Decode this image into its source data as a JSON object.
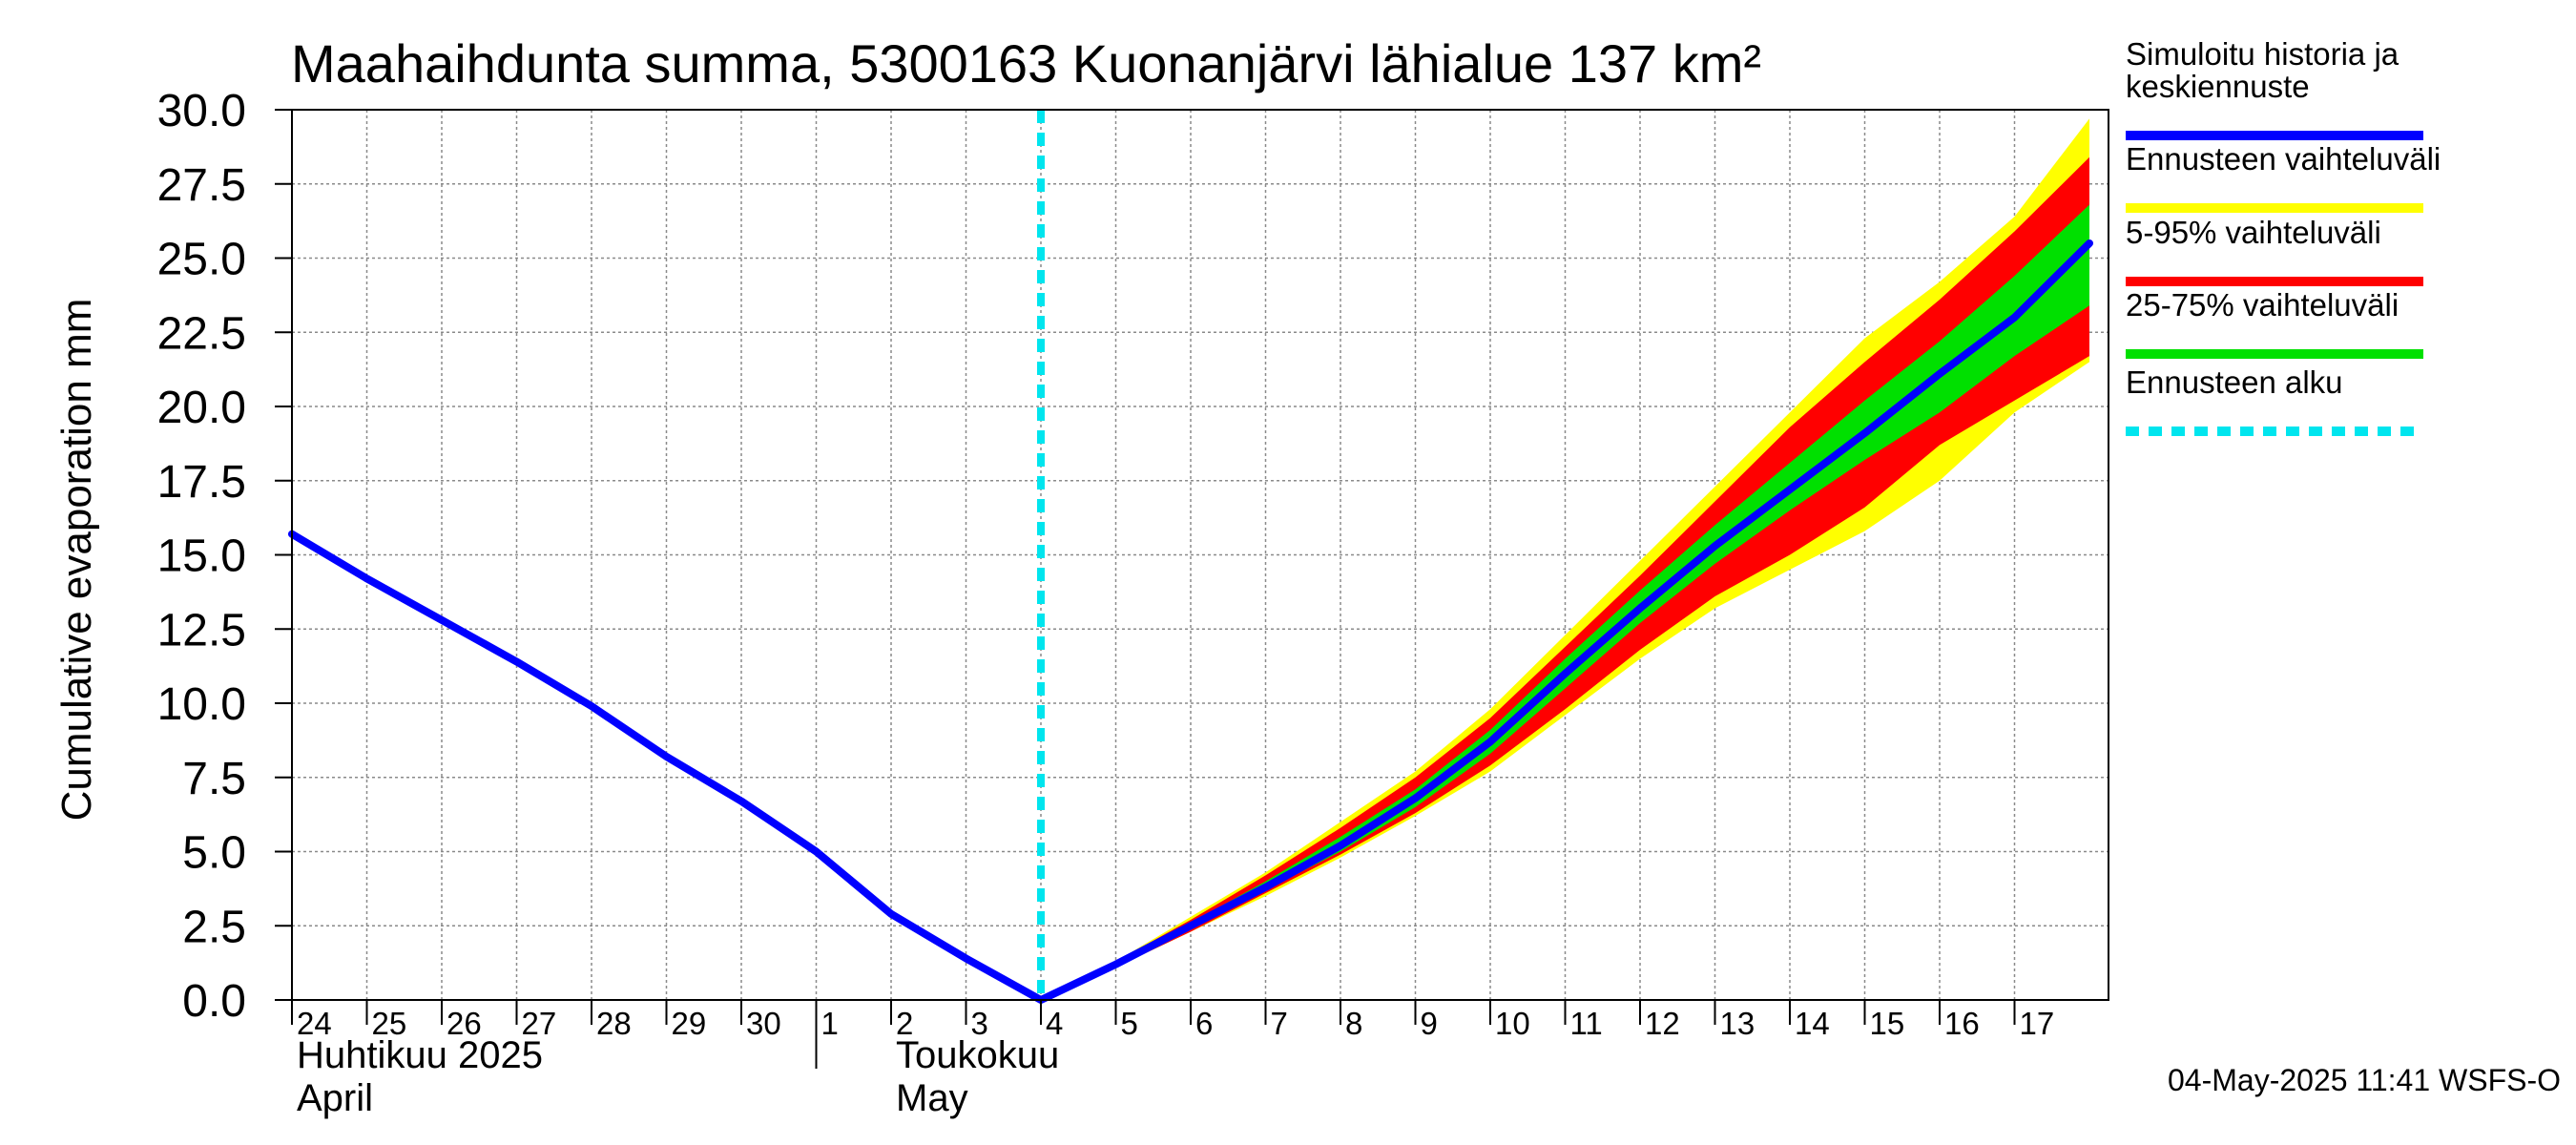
{
  "chart_data": {
    "type": "line",
    "title": "Maahaihdunta summa, 5300163 Kuonanjärvi lähialue 137 km²",
    "ylabel": "Cumulative evaporation   mm",
    "ylim": [
      0,
      30
    ],
    "yticks": [
      "0.0",
      "2.5",
      "5.0",
      "7.5",
      "10.0",
      "12.5",
      "15.0",
      "17.5",
      "20.0",
      "22.5",
      "25.0",
      "27.5",
      "30.0"
    ],
    "x_day_labels": [
      "24",
      "25",
      "26",
      "27",
      "28",
      "29",
      "30",
      "1",
      "2",
      "3",
      "4",
      "5",
      "6",
      "7",
      "8",
      "9",
      "10",
      "11",
      "12",
      "13",
      "14",
      "15",
      "16",
      "17"
    ],
    "month_labels": [
      {
        "line1": "Huhtikuu  2025",
        "line2": "April"
      },
      {
        "line1": "Toukokuu",
        "line2": "May"
      }
    ],
    "x_dates": [
      "2025-04-24",
      "2025-04-25",
      "2025-04-26",
      "2025-04-27",
      "2025-04-28",
      "2025-04-29",
      "2025-04-30",
      "2025-05-01",
      "2025-05-02",
      "2025-05-03",
      "2025-05-04",
      "2025-05-05",
      "2025-05-06",
      "2025-05-07",
      "2025-05-08",
      "2025-05-09",
      "2025-05-10",
      "2025-05-11",
      "2025-05-12",
      "2025-05-13",
      "2025-05-14",
      "2025-05-15",
      "2025-05-16",
      "2025-05-17",
      "2025-05-18"
    ],
    "x_range": [
      "2025-04-24",
      "2025-05-18"
    ],
    "forecast_start": "2025-05-04",
    "grid": true,
    "legend_position": "right",
    "series": [
      {
        "name": "Simuloitu historia ja keskiennuste",
        "color": "#0000ff",
        "values": [
          15.7,
          14.2,
          12.8,
          11.4,
          9.9,
          8.2,
          6.7,
          5.0,
          2.9,
          1.4,
          0.0,
          1.2,
          2.5,
          3.8,
          5.2,
          6.8,
          8.7,
          11.0,
          13.2,
          15.3,
          17.2,
          19.1,
          21.1,
          23.0,
          25.5
        ]
      },
      {
        "name": "Ennusteen vaihteluväli",
        "color": "#ffff00",
        "x_start": "2025-05-04",
        "upper": [
          0.0,
          1.3,
          2.8,
          4.3,
          6.0,
          7.7,
          9.8,
          12.3,
          14.8,
          17.3,
          19.8,
          22.3,
          24.2,
          26.4,
          29.7
        ],
        "lower": [
          0.0,
          1.1,
          2.3,
          3.5,
          4.8,
          6.2,
          7.7,
          9.6,
          11.5,
          13.2,
          14.5,
          15.8,
          17.5,
          19.8,
          21.5
        ]
      },
      {
        "name": "5-95% vaihteluväli",
        "color": "#ff0000",
        "x_start": "2025-05-04",
        "upper": [
          0.0,
          1.3,
          2.7,
          4.2,
          5.8,
          7.5,
          9.5,
          11.9,
          14.3,
          16.8,
          19.3,
          21.5,
          23.6,
          25.9,
          28.4
        ],
        "lower": [
          0.0,
          1.1,
          2.3,
          3.6,
          4.9,
          6.3,
          7.9,
          9.8,
          11.8,
          13.6,
          15.0,
          16.6,
          18.7,
          20.2,
          21.7
        ]
      },
      {
        "name": "25-75% vaihteluväli",
        "color": "#00e000",
        "x_start": "2025-05-04",
        "upper": [
          0.0,
          1.25,
          2.6,
          4.0,
          5.5,
          7.1,
          9.1,
          11.5,
          13.8,
          16.0,
          18.1,
          20.2,
          22.2,
          24.4,
          26.8
        ],
        "lower": [
          0.0,
          1.15,
          2.4,
          3.7,
          5.0,
          6.5,
          8.3,
          10.5,
          12.7,
          14.7,
          16.5,
          18.2,
          19.8,
          21.7,
          23.4
        ]
      }
    ],
    "legend": [
      {
        "label": "Simuloitu historia ja\nkeskiennuste",
        "color": "#0000ff",
        "style": "solid"
      },
      {
        "label": "Ennusteen vaihteluväli",
        "color": "#ffff00",
        "style": "solid"
      },
      {
        "label": "5-95% vaihteluväli",
        "color": "#ff0000",
        "style": "solid"
      },
      {
        "label": "25-75% vaihteluväli",
        "color": "#00e000",
        "style": "solid"
      },
      {
        "label": "Ennusteen alku",
        "color": "#00e5ee",
        "style": "dashed"
      }
    ],
    "footer": "04-May-2025 11:41 WSFS-O"
  }
}
